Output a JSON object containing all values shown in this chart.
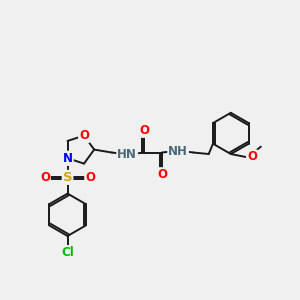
{
  "bg_color": "#f0f0f0",
  "bond_color": "#1a1a1a",
  "atom_colors": {
    "O": "#ff0000",
    "N": "#0000ee",
    "S": "#ccaa00",
    "Cl": "#00bb00",
    "H": "#4a6a7a",
    "C": "#1a1a1a"
  },
  "font_size": 8.5,
  "line_width": 1.4
}
